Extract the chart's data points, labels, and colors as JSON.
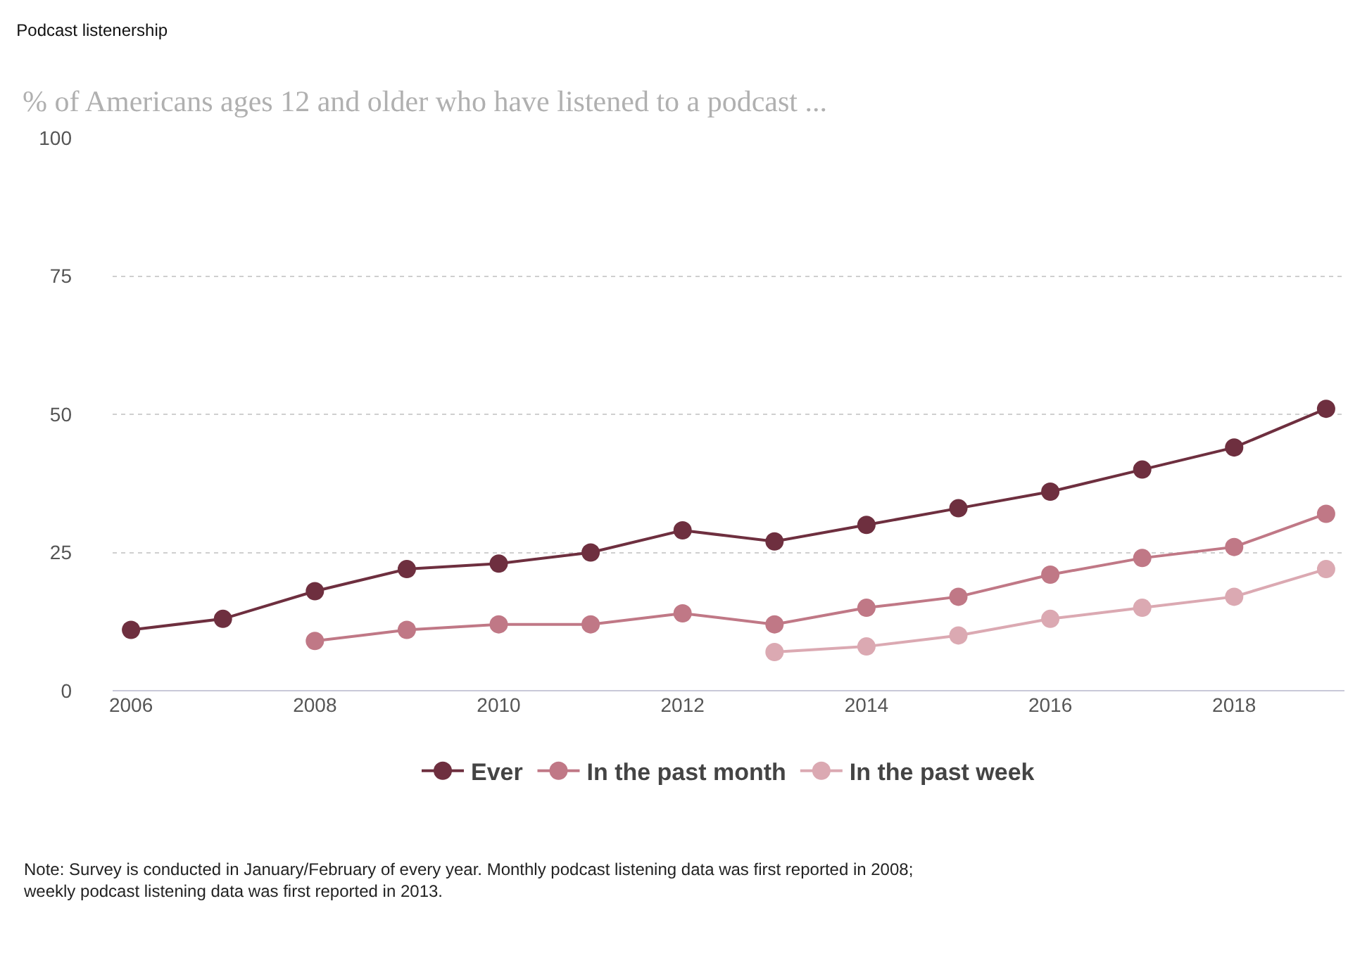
{
  "chart_data": {
    "type": "line",
    "title": "Podcast listenership",
    "subtitle": "% of Americans ages 12 and older who have listened to a podcast ...",
    "x": [
      2006,
      2007,
      2008,
      2009,
      2010,
      2011,
      2012,
      2013,
      2014,
      2015,
      2016,
      2017,
      2018,
      2019
    ],
    "series": [
      {
        "name": "Ever",
        "color": "#6e2f3f",
        "values": [
          11,
          13,
          18,
          22,
          23,
          25,
          29,
          27,
          30,
          33,
          36,
          40,
          44,
          51
        ]
      },
      {
        "name": "In the past month",
        "color": "#c07886",
        "values": [
          null,
          null,
          9,
          11,
          12,
          12,
          14,
          12,
          15,
          17,
          21,
          24,
          26,
          32
        ]
      },
      {
        "name": "In the past week",
        "color": "#dba9b2",
        "values": [
          null,
          null,
          null,
          null,
          null,
          null,
          null,
          7,
          8,
          10,
          13,
          15,
          17,
          22
        ]
      }
    ],
    "xlim": [
      2005.8,
      2019.2
    ],
    "xticks": [
      2006,
      2008,
      2010,
      2012,
      2014,
      2016,
      2018
    ],
    "ylim": [
      0,
      100
    ],
    "yticks": [
      0,
      25,
      50,
      75,
      100
    ],
    "grid": "y",
    "legend": "bottom",
    "marker": "circle",
    "line_style": "solid",
    "annotations": [
      "Note: Survey is conducted in January/February of every year. Monthly podcast listening data was first reported in 2008; weekly podcast listening data was first reported in 2013."
    ]
  }
}
